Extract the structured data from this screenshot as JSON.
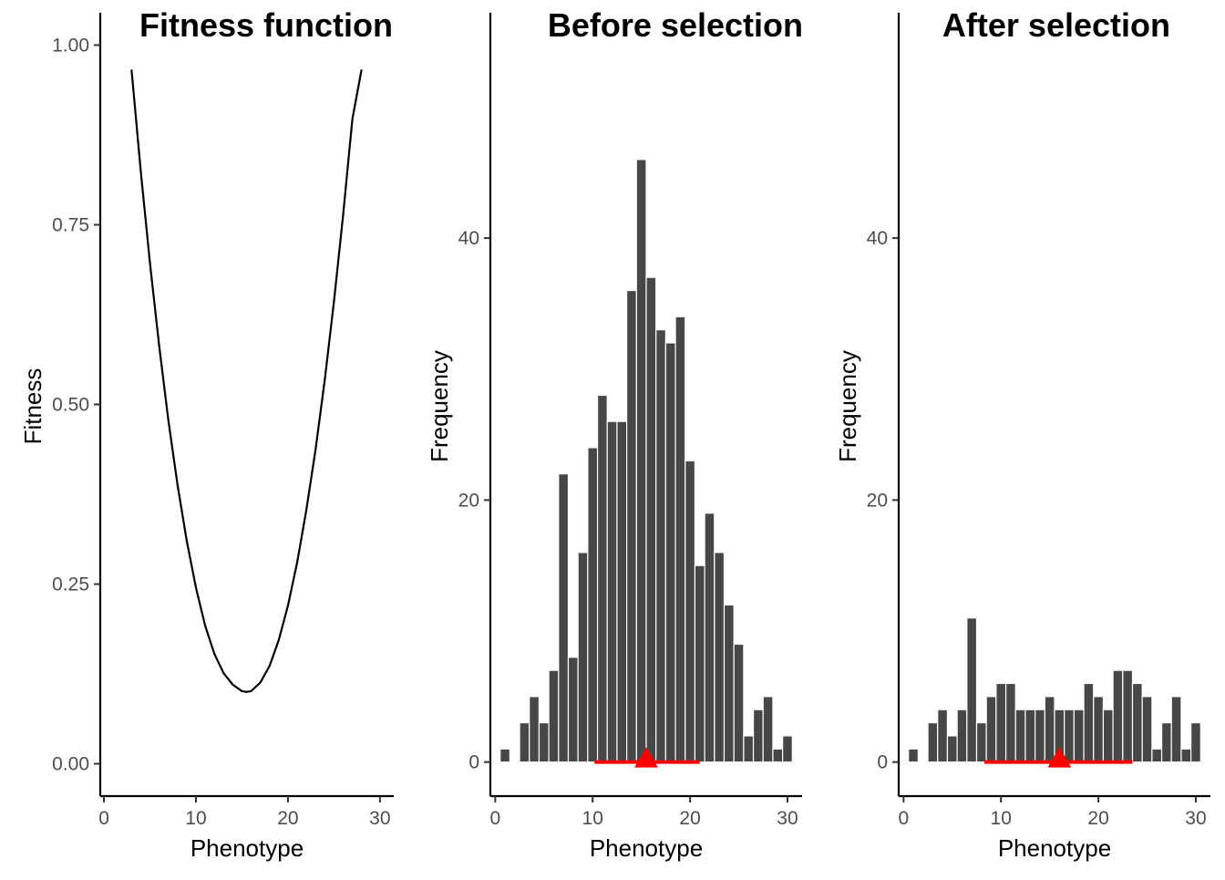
{
  "colors": {
    "bar": "#474747",
    "bar_outline": "#ffffff",
    "line": "#000000",
    "marker": "#ff0000",
    "axis": "#000000",
    "tick_label": "#4d4d4d"
  },
  "chart_data": [
    {
      "type": "line",
      "title": "Fitness function",
      "xlabel": "Phenotype",
      "ylabel": "Fitness",
      "xlim": [
        -0.4,
        31.5
      ],
      "ylim": [
        -0.045,
        1.045
      ],
      "xticks": [
        0,
        10,
        20,
        30
      ],
      "xtick_labels": [
        "0",
        "10",
        "20",
        "30"
      ],
      "yticks": [
        0,
        0.25,
        0.5,
        0.75,
        1.0
      ],
      "ytick_labels": [
        "0.00",
        "0.25",
        "0.50",
        "0.75",
        "1.00"
      ],
      "grid": false,
      "series": [
        {
          "x": [
            3,
            4,
            5,
            6,
            7,
            8,
            9,
            10,
            11,
            12,
            13,
            14,
            15,
            15.5,
            16,
            17,
            18,
            19,
            20,
            21,
            22,
            23,
            24,
            25,
            26,
            27,
            28
          ],
          "y": [
            0.966,
            0.825,
            0.697,
            0.582,
            0.478,
            0.388,
            0.31,
            0.245,
            0.192,
            0.153,
            0.126,
            0.11,
            0.101,
            0.1,
            0.101,
            0.113,
            0.136,
            0.172,
            0.22,
            0.28,
            0.353,
            0.437,
            0.534,
            0.643,
            0.764,
            0.897,
            0.966
          ]
        }
      ]
    },
    {
      "type": "bar",
      "title": "Before selection",
      "xlabel": "Phenotype",
      "ylabel": "Frequency",
      "xlim": [
        -0.5,
        31.5
      ],
      "ylim": [
        -2.6,
        57.2
      ],
      "xticks": [
        0,
        10,
        20,
        30
      ],
      "xtick_labels": [
        "0",
        "10",
        "20",
        "30"
      ],
      "yticks": [
        0,
        20,
        40
      ],
      "ytick_labels": [
        "0",
        "20",
        "40"
      ],
      "grid": false,
      "categories": [
        1,
        2,
        3,
        4,
        5,
        6,
        7,
        8,
        9,
        10,
        11,
        12,
        13,
        14,
        15,
        16,
        17,
        18,
        19,
        20,
        21,
        22,
        23,
        24,
        25,
        26,
        27,
        28,
        29,
        30
      ],
      "values": [
        1,
        0,
        3,
        5,
        3,
        7,
        22,
        8,
        16,
        24,
        28,
        26,
        26,
        36,
        46,
        37,
        33,
        32,
        34,
        23,
        15,
        19,
        16,
        12,
        9,
        2,
        4,
        5,
        1,
        2
      ],
      "summary": {
        "mean": 15.5,
        "interval": [
          10.2,
          21.0
        ]
      }
    },
    {
      "type": "bar",
      "title": "After selection",
      "xlabel": "Phenotype",
      "ylabel": "Frequency",
      "xlim": [
        -0.5,
        31.5
      ],
      "ylim": [
        -2.6,
        57.2
      ],
      "xticks": [
        0,
        10,
        20,
        30
      ],
      "xtick_labels": [
        "0",
        "10",
        "20",
        "30"
      ],
      "yticks": [
        0,
        20,
        40
      ],
      "ytick_labels": [
        "0",
        "20",
        "40"
      ],
      "grid": false,
      "categories": [
        1,
        2,
        3,
        4,
        5,
        6,
        7,
        8,
        9,
        10,
        11,
        12,
        13,
        14,
        15,
        16,
        17,
        18,
        19,
        20,
        21,
        22,
        23,
        24,
        25,
        26,
        27,
        28,
        29,
        30
      ],
      "values": [
        1,
        0,
        3,
        4,
        2,
        4,
        11,
        3,
        5,
        6,
        6,
        4,
        4,
        4,
        5,
        4,
        4,
        4,
        6,
        5,
        4,
        7,
        7,
        6,
        5,
        1,
        3,
        5,
        1,
        3
      ],
      "summary": {
        "mean": 16.0,
        "interval": [
          8.3,
          23.5
        ]
      }
    }
  ]
}
